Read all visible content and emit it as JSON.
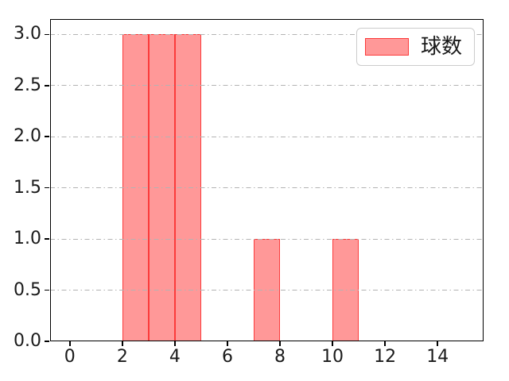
{
  "chart_data": {
    "type": "bar",
    "subtype": "histogram",
    "title": "",
    "xlabel": "",
    "ylabel": "",
    "xlim": [
      -0.75,
      15.75
    ],
    "ylim": [
      0,
      3.15
    ],
    "x_ticks": [
      0,
      2,
      4,
      6,
      8,
      10,
      12,
      14
    ],
    "x_tick_labels": [
      "0",
      "2",
      "4",
      "6",
      "8",
      "10",
      "12",
      "14"
    ],
    "y_ticks": [
      0,
      0.5,
      1.0,
      1.5,
      2.0,
      2.5,
      3.0
    ],
    "y_tick_labels": [
      "0.0",
      "0.5",
      "1.0",
      "1.5",
      "2.0",
      "2.5",
      "3.0"
    ],
    "grid": {
      "axis": "y",
      "style": "dash-dot",
      "drawn_above_bars": true
    },
    "bars": [
      {
        "x_start": 2,
        "x_end": 3,
        "count": 3
      },
      {
        "x_start": 3,
        "x_end": 4,
        "count": 3
      },
      {
        "x_start": 4,
        "x_end": 5,
        "count": 3
      },
      {
        "x_start": 7,
        "x_end": 8,
        "count": 1
      },
      {
        "x_start": 10,
        "x_end": 11,
        "count": 1
      }
    ],
    "legend": {
      "label": "球数",
      "position": "upper right"
    },
    "colors": {
      "bar_fill": "#ff9898",
      "bar_edge": "#fb3b3b",
      "grid": "#b3b3b3",
      "spine": "#000000",
      "text": "#1a1a1a",
      "legend_border": "#cccccc",
      "background": "#ffffff"
    }
  }
}
